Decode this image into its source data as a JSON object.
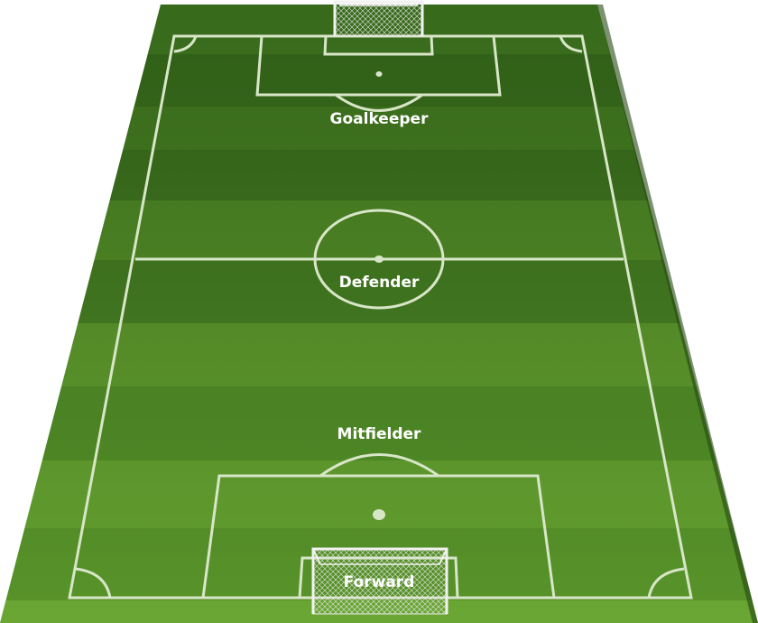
{
  "pitch": {
    "colors": {
      "grass_dark": "#3a6b1c",
      "grass_light": "#5f9a2b",
      "line": "#d8e6c8"
    },
    "position_labels": {
      "goalkeeper": "Goalkeeper",
      "defender": "Defender",
      "midfielder": "Mitfielder",
      "forward": "Forward"
    }
  }
}
